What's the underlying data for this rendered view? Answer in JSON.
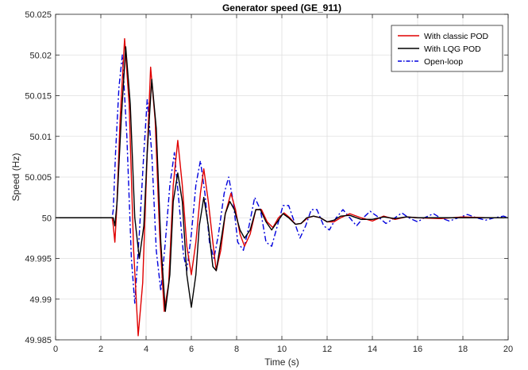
{
  "chart_data": {
    "type": "line",
    "title": "Generator speed (GE_911)",
    "xlabel": "Time (s)",
    "ylabel": "Speed (Hz)",
    "xlim": [
      0,
      20
    ],
    "ylim": [
      49.985,
      50.025
    ],
    "x_ticks": [
      0,
      2,
      4,
      6,
      8,
      10,
      12,
      14,
      16,
      18,
      20
    ],
    "y_ticks": [
      49.985,
      49.99,
      49.995,
      50,
      50.005,
      50.01,
      50.015,
      50.02,
      50.025
    ],
    "x_tick_labels": [
      "0",
      "2",
      "4",
      "6",
      "8",
      "10",
      "12",
      "14",
      "16",
      "18",
      "20"
    ],
    "y_tick_labels": [
      "49.985",
      "49.99",
      "49.995",
      "50",
      "50.005",
      "50.01",
      "50.015",
      "50.02",
      "50.025"
    ],
    "grid": true,
    "legend_position": "top-right",
    "series": [
      {
        "name": "With classic POD",
        "color": "#e00000",
        "style": "solid",
        "points": [
          [
            0,
            50
          ],
          [
            2.5,
            50
          ],
          [
            2.55,
            49.999
          ],
          [
            2.62,
            49.997
          ],
          [
            2.7,
            50.001
          ],
          [
            2.85,
            50.012
          ],
          [
            3.05,
            50.022
          ],
          [
            3.25,
            50.014
          ],
          [
            3.45,
            49.996
          ],
          [
            3.65,
            49.9855
          ],
          [
            3.85,
            49.992
          ],
          [
            4.05,
            50.008
          ],
          [
            4.2,
            50.0185
          ],
          [
            4.4,
            50.012
          ],
          [
            4.6,
            49.998
          ],
          [
            4.8,
            49.9885
          ],
          [
            5.0,
            49.992
          ],
          [
            5.2,
            50.004
          ],
          [
            5.4,
            50.0095
          ],
          [
            5.6,
            50.004
          ],
          [
            5.8,
            49.9965
          ],
          [
            6.0,
            49.993
          ],
          [
            6.2,
            49.997
          ],
          [
            6.4,
            50.003
          ],
          [
            6.55,
            50.006
          ],
          [
            6.75,
            50.002
          ],
          [
            6.95,
            49.997
          ],
          [
            7.1,
            49.9935
          ],
          [
            7.3,
            49.996
          ],
          [
            7.5,
            50.0005
          ],
          [
            7.75,
            50.003
          ],
          [
            7.95,
            50.001
          ],
          [
            8.15,
            49.998
          ],
          [
            8.35,
            49.9965
          ],
          [
            8.6,
            49.998
          ],
          [
            8.85,
            50.001
          ],
          [
            9.1,
            50.001
          ],
          [
            9.35,
            49.9995
          ],
          [
            9.6,
            49.9988
          ],
          [
            9.85,
            50.0
          ],
          [
            10.1,
            50.0006
          ],
          [
            10.35,
            50.0
          ],
          [
            10.6,
            49.9992
          ],
          [
            10.85,
            49.9993
          ],
          [
            11.15,
            50.0
          ],
          [
            11.4,
            50.0002
          ],
          [
            11.7,
            50.0
          ],
          [
            12.0,
            49.9995
          ],
          [
            12.3,
            49.9995
          ],
          [
            12.6,
            50.0
          ],
          [
            13.0,
            50.0005
          ],
          [
            13.5,
            50.0
          ],
          [
            14.0,
            49.9996
          ],
          [
            14.5,
            50.0002
          ],
          [
            15.0,
            49.9998
          ],
          [
            15.5,
            50.0001
          ],
          [
            16.0,
            50.0
          ],
          [
            17.0,
            49.9999
          ],
          [
            18.0,
            50.0001
          ],
          [
            19.0,
            50.0
          ],
          [
            20.0,
            50.0
          ]
        ]
      },
      {
        "name": "With LQG POD",
        "color": "#000000",
        "style": "solid",
        "points": [
          [
            0,
            50
          ],
          [
            2.5,
            50
          ],
          [
            2.55,
            50.0
          ],
          [
            2.62,
            49.999
          ],
          [
            2.72,
            50.002
          ],
          [
            2.9,
            50.012
          ],
          [
            3.1,
            50.021
          ],
          [
            3.3,
            50.014
          ],
          [
            3.5,
            50.0
          ],
          [
            3.7,
            49.995
          ],
          [
            3.9,
            49.999
          ],
          [
            4.05,
            50.008
          ],
          [
            4.25,
            50.017
          ],
          [
            4.45,
            50.011
          ],
          [
            4.65,
            49.997
          ],
          [
            4.85,
            49.9885
          ],
          [
            5.05,
            49.993
          ],
          [
            5.2,
            50.002
          ],
          [
            5.4,
            50.0055
          ],
          [
            5.6,
            50.002
          ],
          [
            5.8,
            49.993
          ],
          [
            6.0,
            49.989
          ],
          [
            6.2,
            49.993
          ],
          [
            6.35,
            49.999
          ],
          [
            6.55,
            50.0025
          ],
          [
            6.75,
            49.999
          ],
          [
            6.95,
            49.994
          ],
          [
            7.1,
            49.9935
          ],
          [
            7.3,
            49.997
          ],
          [
            7.5,
            50.0005
          ],
          [
            7.7,
            50.002
          ],
          [
            7.9,
            50.001
          ],
          [
            8.15,
            49.9985
          ],
          [
            8.35,
            49.9975
          ],
          [
            8.6,
            49.9985
          ],
          [
            8.85,
            50.001
          ],
          [
            9.05,
            50.001
          ],
          [
            9.3,
            49.9995
          ],
          [
            9.55,
            49.9985
          ],
          [
            9.8,
            49.9995
          ],
          [
            10.05,
            50.0005
          ],
          [
            10.3,
            50.0
          ],
          [
            10.6,
            49.9992
          ],
          [
            10.85,
            49.9993
          ],
          [
            11.1,
            50.0
          ],
          [
            11.4,
            50.0002
          ],
          [
            11.7,
            50.0
          ],
          [
            12.0,
            49.9995
          ],
          [
            12.3,
            49.9997
          ],
          [
            12.6,
            50.0002
          ],
          [
            13.0,
            50.0003
          ],
          [
            13.5,
            49.9998
          ],
          [
            14.0,
            49.9998
          ],
          [
            14.5,
            50.0001
          ],
          [
            15.0,
            49.9999
          ],
          [
            15.5,
            50.0001
          ],
          [
            16.0,
            50.0
          ],
          [
            17.0,
            50.0
          ],
          [
            18.0,
            50.0
          ],
          [
            19.0,
            50.0
          ],
          [
            20.0,
            50.0
          ]
        ]
      },
      {
        "name": "Open-loop",
        "color": "#0000dd",
        "style": "dashdot",
        "points": [
          [
            0,
            50
          ],
          [
            2.5,
            50
          ],
          [
            2.55,
            50.001
          ],
          [
            2.65,
            50.008
          ],
          [
            2.8,
            50.016
          ],
          [
            2.95,
            50.02
          ],
          [
            3.15,
            50.01
          ],
          [
            3.35,
            49.995
          ],
          [
            3.5,
            49.9895
          ],
          [
            3.7,
            49.998
          ],
          [
            3.9,
            50.008
          ],
          [
            4.05,
            50.0145
          ],
          [
            4.25,
            50.008
          ],
          [
            4.45,
            49.996
          ],
          [
            4.65,
            49.991
          ],
          [
            4.85,
            49.997
          ],
          [
            5.05,
            50.004
          ],
          [
            5.25,
            50.008
          ],
          [
            5.45,
            50.002
          ],
          [
            5.65,
            49.9955
          ],
          [
            5.8,
            49.9935
          ],
          [
            6.0,
            49.998
          ],
          [
            6.2,
            50.004
          ],
          [
            6.4,
            50.007
          ],
          [
            6.6,
            50.003
          ],
          [
            6.8,
            49.997
          ],
          [
            7.0,
            49.995
          ],
          [
            7.2,
            49.998
          ],
          [
            7.45,
            50.003
          ],
          [
            7.65,
            50.005
          ],
          [
            7.85,
            50.002
          ],
          [
            8.05,
            49.997
          ],
          [
            8.3,
            49.996
          ],
          [
            8.55,
            49.999
          ],
          [
            8.8,
            50.0025
          ],
          [
            9.05,
            50.001
          ],
          [
            9.3,
            49.997
          ],
          [
            9.55,
            49.9965
          ],
          [
            9.8,
            49.999
          ],
          [
            10.05,
            50.0015
          ],
          [
            10.3,
            50.0015
          ],
          [
            10.55,
            49.9995
          ],
          [
            10.8,
            49.9975
          ],
          [
            11.05,
            49.999
          ],
          [
            11.3,
            50.001
          ],
          [
            11.55,
            50.001
          ],
          [
            11.85,
            49.999
          ],
          [
            12.1,
            49.9985
          ],
          [
            12.4,
            50.0
          ],
          [
            12.7,
            50.001
          ],
          [
            13.0,
            50.0
          ],
          [
            13.3,
            49.999
          ],
          [
            13.6,
            50.0
          ],
          [
            13.9,
            50.0008
          ],
          [
            14.3,
            50.0
          ],
          [
            14.6,
            49.9993
          ],
          [
            15.0,
            50.0
          ],
          [
            15.3,
            50.0006
          ],
          [
            15.6,
            50.0
          ],
          [
            16.0,
            49.9995
          ],
          [
            16.3,
            50.0
          ],
          [
            16.7,
            50.0005
          ],
          [
            17.0,
            50.0
          ],
          [
            17.4,
            49.9996
          ],
          [
            17.8,
            50.0
          ],
          [
            18.2,
            50.0004
          ],
          [
            18.6,
            50.0
          ],
          [
            19.0,
            49.9997
          ],
          [
            19.4,
            50.0
          ],
          [
            19.8,
            50.0002
          ],
          [
            20.0,
            50.0
          ]
        ]
      }
    ]
  }
}
